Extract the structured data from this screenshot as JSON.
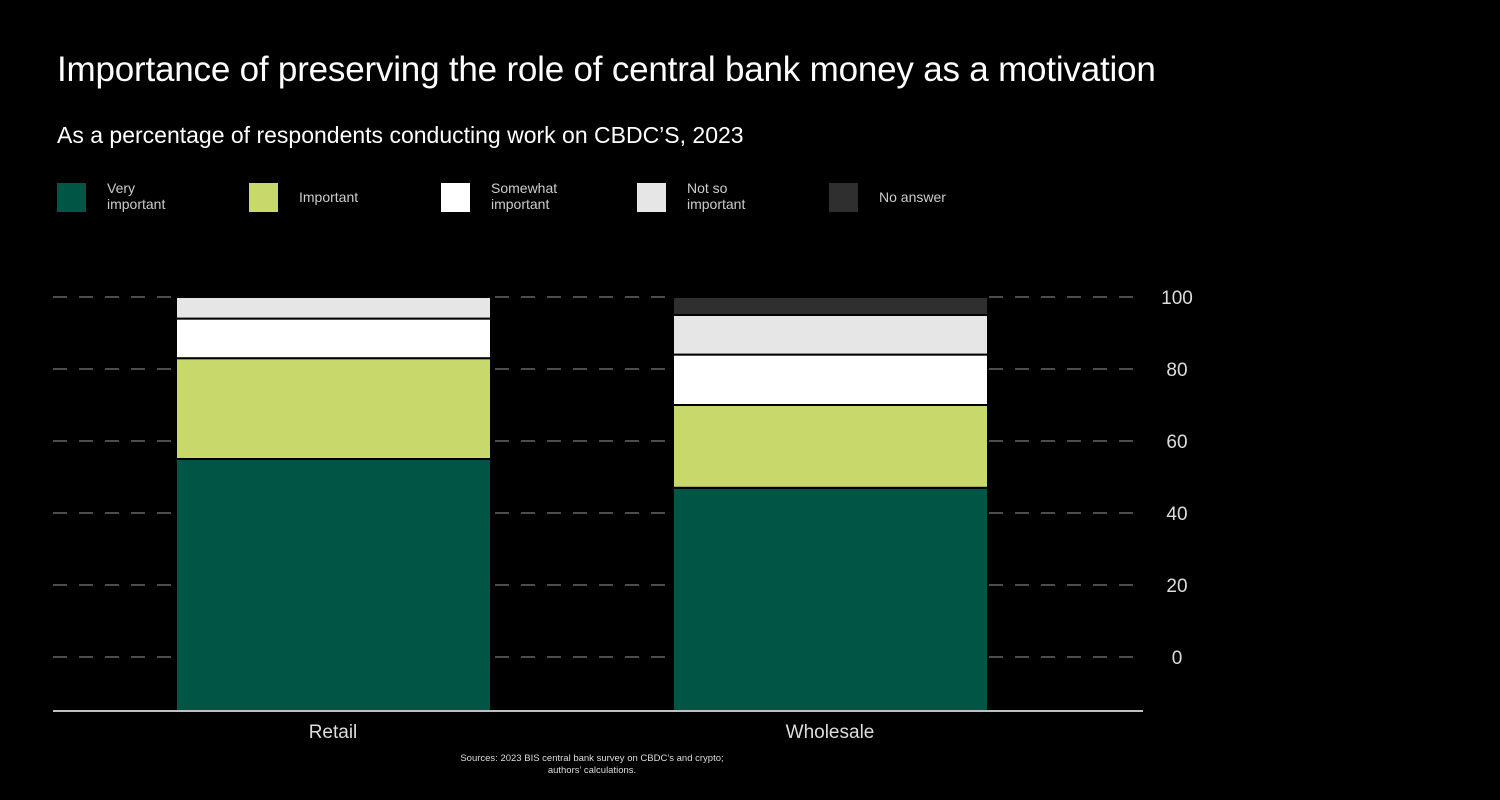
{
  "title": "Importance of preserving the role of central bank money as a motivation",
  "subtitle": "As a percentage of respondents conducting work on CBDC’S, 2023",
  "source": {
    "line1": "Sources: 2023 BIS central bank survey on CBDC’s and crypto;",
    "line2": "authors’ calculations."
  },
  "chart_data": {
    "type": "bar",
    "stacked": true,
    "categories": [
      "Retail",
      "Wholesale"
    ],
    "series": [
      {
        "name": "Very important",
        "line1": "Very",
        "line2": "important",
        "color": "#005544",
        "values": [
          55,
          47
        ]
      },
      {
        "name": "Important",
        "line1": "Important",
        "line2": "",
        "color": "#c8d86a",
        "values": [
          28,
          23
        ]
      },
      {
        "name": "Somewhat important",
        "line1": "Somewhat",
        "line2": "important",
        "color": "#ffffff",
        "values": [
          11,
          14
        ]
      },
      {
        "name": "Not so important",
        "line1": "Not so",
        "line2": "important",
        "color": "#e6e6e6",
        "values": [
          6,
          11
        ]
      },
      {
        "name": "No answer",
        "line1": "No answer",
        "line2": "",
        "color": "#2f2f2f",
        "values": [
          0,
          5
        ]
      }
    ],
    "y_ticks": [
      0,
      20,
      40,
      60,
      80,
      100
    ],
    "ylim": [
      0,
      100
    ],
    "grid": true,
    "grid_style": "dashed",
    "y_axis_side": "right",
    "legend_position": "top-left"
  }
}
